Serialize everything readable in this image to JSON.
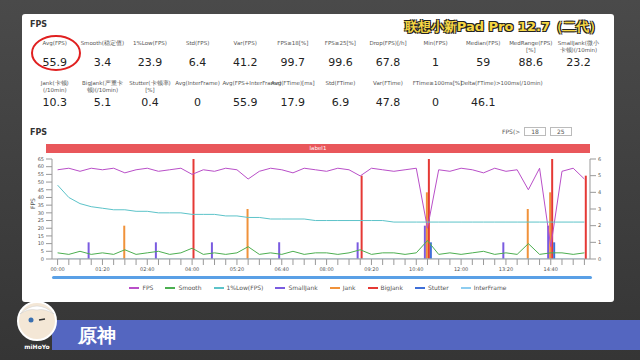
{
  "header": {
    "title": "联想小新Pad Pro 12.7（二代）",
    "section": "FPS"
  },
  "stats": [
    [
      {
        "label": "Avg(FPS)",
        "value": 55.9
      },
      {
        "label": "Smooth(稳定值)",
        "value": 3.4
      },
      {
        "label": "1%Low(FPS)",
        "value": 23.9
      },
      {
        "label": "Std(FPS)",
        "value": 6.4
      },
      {
        "label": "Var(FPS)",
        "value": 41.2
      },
      {
        "label": "FPS≥18[%]",
        "value": 99.7
      },
      {
        "label": "FPS≥25[%]",
        "value": 99.6
      },
      {
        "label": "Drop(FPS)[/h]",
        "value": 67.8
      },
      {
        "label": "Min(FPS)",
        "value": 1
      },
      {
        "label": "Median(FPS)",
        "value": 59
      },
      {
        "label": "MedRange(FPS)[%]",
        "value": 88.6
      },
      {
        "label": "SmallJank(微小卡顿)(/10min)",
        "value": 23.2
      }
    ],
    [
      {
        "label": "Jank(卡顿)(/10min)",
        "value": 10.3
      },
      {
        "label": "BigJank(严重卡顿)(/10min)",
        "value": 5.1
      },
      {
        "label": "Stutter(卡顿率)[%]",
        "value": 0.4
      },
      {
        "label": "Avg(InterFrame)",
        "value": 0
      },
      {
        "label": "Avg(FPS+InterFrame)",
        "value": 55.9
      },
      {
        "label": "Avg(FTime)[ms]",
        "value": 17.9
      },
      {
        "label": "Std(FTime)",
        "value": 6.9
      },
      {
        "label": "Var(FTime)",
        "value": 47.8
      },
      {
        "label": "FTime≥100ms[%]",
        "value": 0
      },
      {
        "label": "Delta(FTime)>100ms(/10min)",
        "value": 46.1
      }
    ]
  ],
  "chart_header": {
    "title": "FPS",
    "threshold_label": "FPS(>",
    "thresholds": [
      18,
      25
    ]
  },
  "label_bar": "label1",
  "chart_data": {
    "type": "line",
    "ylabel": "FPS",
    "grid": false,
    "legend": "bottom",
    "categories": [
      "00:00",
      null,
      null,
      null,
      "01:20",
      null,
      null,
      null,
      "02:40",
      null,
      null,
      null,
      "04:00",
      null,
      null,
      null,
      "05:20",
      null,
      null,
      null,
      "06:40",
      null,
      null,
      null,
      "08:00",
      null,
      null,
      null,
      "09:20",
      null,
      null,
      null,
      "10:40",
      null,
      null,
      null,
      "12:00",
      null,
      null,
      null,
      "13:20",
      null,
      null,
      null,
      "14:40",
      null,
      null,
      null
    ],
    "ylim": [
      0,
      65
    ],
    "yticks": [
      0,
      5,
      10,
      15,
      20,
      25,
      30,
      35,
      40,
      45,
      50,
      55,
      60,
      65
    ],
    "y2lim": [
      0,
      6
    ],
    "y2ticks": [
      0,
      1,
      2,
      3,
      4,
      5,
      6
    ],
    "series": [
      {
        "name": "FPS",
        "type": "line",
        "color": "#b94fc8",
        "values": [
          58,
          59,
          57,
          59,
          58,
          59,
          56,
          58,
          59,
          57,
          58,
          59,
          55,
          58,
          57,
          59,
          58,
          52,
          57,
          59,
          58,
          56,
          59,
          58,
          57,
          59,
          58,
          54,
          59,
          58,
          57,
          58,
          59,
          20,
          58,
          57,
          59,
          58,
          56,
          59,
          57,
          58,
          45,
          59,
          8,
          57,
          59,
          52
        ]
      },
      {
        "name": "Smooth",
        "type": "line",
        "color": "#4caf50",
        "values": [
          4,
          3,
          5,
          3,
          4,
          3,
          6,
          3,
          4,
          5,
          3,
          4,
          7,
          3,
          4,
          3,
          4,
          8,
          3,
          4,
          3,
          5,
          3,
          4,
          4,
          3,
          4,
          6,
          3,
          4,
          4,
          3,
          4,
          12,
          3,
          4,
          3,
          4,
          5,
          3,
          4,
          3,
          10,
          3,
          4,
          4,
          3,
          4
        ]
      },
      {
        "name": "1%Low(FPS)",
        "type": "line",
        "color": "#5cc3c9",
        "values": [
          48,
          40,
          36,
          34,
          33,
          32,
          32,
          31,
          31,
          30,
          30,
          30,
          29,
          29,
          29,
          28,
          28,
          27,
          27,
          26,
          26,
          26,
          26,
          25,
          25,
          25,
          25,
          25,
          25,
          25,
          24,
          24,
          24,
          24,
          24,
          24,
          24,
          24,
          24,
          24,
          24,
          24,
          24,
          24,
          24,
          24,
          24,
          24
        ]
      },
      {
        "name": "SmallJank",
        "type": "bar",
        "axis": "y2",
        "color": "#7a5be0",
        "values": [
          0,
          0,
          0,
          1,
          0,
          0,
          0,
          0,
          0,
          1,
          0,
          0,
          0,
          0,
          1,
          0,
          0,
          0,
          0,
          0,
          1,
          0,
          0,
          0,
          0,
          0,
          0,
          1,
          0,
          0,
          0,
          0,
          0,
          2,
          0,
          0,
          0,
          0,
          0,
          0,
          1,
          0,
          0,
          0,
          2,
          0,
          0,
          0
        ]
      },
      {
        "name": "Jank",
        "type": "bar",
        "axis": "y2",
        "color": "#f0923a",
        "values": [
          0,
          0,
          0,
          0,
          0,
          0,
          2,
          0,
          0,
          0,
          0,
          0,
          0,
          0,
          0,
          0,
          0,
          3,
          0,
          0,
          0,
          0,
          0,
          0,
          0,
          0,
          0,
          0,
          0,
          0,
          0,
          0,
          0,
          4,
          0,
          0,
          0,
          0,
          0,
          0,
          0,
          0,
          3,
          0,
          4,
          0,
          0,
          0
        ]
      },
      {
        "name": "BigJank",
        "type": "bar",
        "axis": "y2",
        "color": "#e53935",
        "values": [
          0,
          0,
          0,
          0,
          0,
          0,
          0,
          0,
          0,
          0,
          0,
          0,
          6,
          0,
          0,
          0,
          0,
          0,
          0,
          0,
          0,
          0,
          0,
          0,
          0,
          0,
          0,
          5,
          0,
          0,
          0,
          0,
          0,
          6,
          0,
          0,
          0,
          0,
          0,
          0,
          0,
          0,
          0,
          0,
          6,
          0,
          0,
          5
        ]
      },
      {
        "name": "Stutter",
        "type": "bar",
        "axis": "y2",
        "color": "#3f6fd8",
        "values": [
          0,
          0,
          0,
          0,
          0,
          0,
          0,
          0,
          0,
          0,
          0,
          0,
          0,
          0,
          0,
          0,
          0,
          0,
          0,
          0,
          0,
          0,
          0,
          0,
          0,
          0,
          0,
          0,
          0,
          0,
          0,
          0,
          0,
          1,
          0,
          0,
          0,
          0,
          0,
          0,
          0,
          0,
          0,
          0,
          1,
          0,
          0,
          0
        ]
      },
      {
        "name": "InterFrame",
        "type": "line",
        "color": "#8ecdf0",
        "values": [
          0,
          0,
          0,
          0,
          0,
          0,
          0,
          0,
          0,
          0,
          0,
          0,
          0,
          0,
          0,
          0,
          0,
          0,
          0,
          0,
          0,
          0,
          0,
          0,
          0,
          0,
          0,
          0,
          0,
          0,
          0,
          0,
          0,
          0,
          0,
          0,
          0,
          0,
          0,
          0,
          0,
          0,
          0,
          0,
          0,
          0,
          0,
          0
        ]
      }
    ]
  },
  "footer": {
    "game": "原神",
    "logo": "miHoYo"
  }
}
